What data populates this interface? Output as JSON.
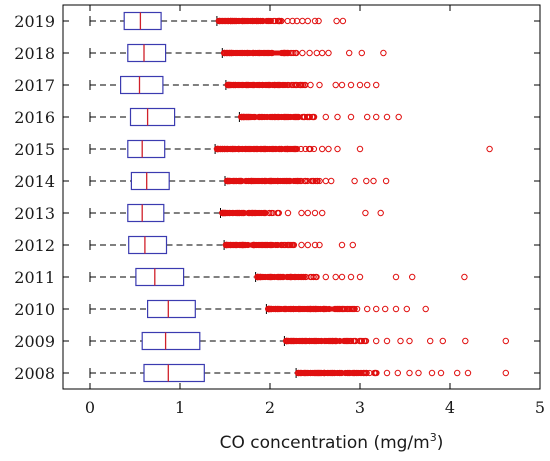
{
  "chart_data": {
    "type": "boxplot",
    "orientation": "horizontal",
    "xlabel_prefix": "CO concentration (mg/m",
    "xlabel_superscript": "3",
    "xlabel_suffix": ")",
    "xlim": [
      -0.3,
      5
    ],
    "xticks": [
      0,
      1,
      2,
      3,
      4,
      5
    ],
    "categories": [
      "2008",
      "2009",
      "2010",
      "2011",
      "2012",
      "2013",
      "2014",
      "2015",
      "2016",
      "2017",
      "2018",
      "2019"
    ],
    "colors": {
      "box": "#3b3bb0",
      "median": "#d0202a",
      "whisker": "#000000",
      "outlier": "#e01010"
    },
    "series": [
      {
        "year": "2019",
        "whisker_low": 0.0,
        "q1": 0.38,
        "median": 0.56,
        "q3": 0.79,
        "whisker_high": 1.41,
        "outlier_dense": [
          1.43,
          2.2
        ],
        "outlier_sparse": [
          2.25,
          2.3,
          2.36,
          2.42,
          2.5,
          2.54,
          2.74,
          2.81
        ]
      },
      {
        "year": "2018",
        "whisker_low": 0.0,
        "q1": 0.42,
        "median": 0.6,
        "q3": 0.84,
        "whisker_high": 1.47,
        "outlier_dense": [
          1.49,
          2.3
        ],
        "outlier_sparse": [
          2.36,
          2.44,
          2.52,
          2.58,
          2.65,
          2.88,
          3.02,
          3.26
        ]
      },
      {
        "year": "2017",
        "whisker_low": 0.0,
        "q1": 0.34,
        "median": 0.55,
        "q3": 0.81,
        "whisker_high": 1.51,
        "outlier_dense": [
          1.53,
          2.4
        ],
        "outlier_sparse": [
          2.45,
          2.55,
          2.73,
          2.8,
          2.9,
          3.0,
          3.08,
          3.18
        ]
      },
      {
        "year": "2016",
        "whisker_low": 0.0,
        "q1": 0.45,
        "median": 0.64,
        "q3": 0.94,
        "whisker_high": 1.66,
        "outlier_dense": [
          1.68,
          2.55
        ],
        "outlier_sparse": [
          2.62,
          2.75,
          2.9,
          3.08,
          3.18,
          3.3,
          3.43
        ]
      },
      {
        "year": "2015",
        "whisker_low": 0.0,
        "q1": 0.42,
        "median": 0.58,
        "q3": 0.83,
        "whisker_high": 1.39,
        "outlier_dense": [
          1.41,
          2.5
        ],
        "outlier_sparse": [
          2.58,
          2.65,
          2.75,
          3.0,
          4.44
        ]
      },
      {
        "year": "2014",
        "whisker_low": 0.0,
        "q1": 0.46,
        "median": 0.63,
        "q3": 0.88,
        "whisker_high": 1.5,
        "outlier_dense": [
          1.52,
          2.56
        ],
        "outlier_sparse": [
          2.62,
          2.68,
          2.94,
          3.07,
          3.15,
          3.29
        ]
      },
      {
        "year": "2013",
        "whisker_low": 0.0,
        "q1": 0.42,
        "median": 0.58,
        "q3": 0.82,
        "whisker_high": 1.45,
        "outlier_dense": [
          1.47,
          2.1
        ],
        "outlier_sparse": [
          2.2,
          2.35,
          2.42,
          2.5,
          2.58,
          3.06,
          3.23
        ]
      },
      {
        "year": "2012",
        "whisker_low": 0.0,
        "q1": 0.43,
        "median": 0.61,
        "q3": 0.85,
        "whisker_high": 1.49,
        "outlier_dense": [
          1.51,
          2.3
        ],
        "outlier_sparse": [
          2.35,
          2.42,
          2.5,
          2.55,
          2.8,
          2.92
        ]
      },
      {
        "year": "2011",
        "whisker_low": 0.0,
        "q1": 0.51,
        "median": 0.72,
        "q3": 1.04,
        "whisker_high": 1.84,
        "outlier_dense": [
          1.86,
          2.55
        ],
        "outlier_sparse": [
          2.62,
          2.73,
          2.8,
          2.9,
          3.0,
          3.4,
          3.58,
          4.16
        ]
      },
      {
        "year": "2010",
        "whisker_low": 0.0,
        "q1": 0.64,
        "median": 0.87,
        "q3": 1.17,
        "whisker_high": 1.96,
        "outlier_dense": [
          1.98,
          3.0
        ],
        "outlier_sparse": [
          3.08,
          3.18,
          3.28,
          3.4,
          3.52,
          3.73
        ]
      },
      {
        "year": "2009",
        "whisker_low": 0.0,
        "q1": 0.58,
        "median": 0.84,
        "q3": 1.22,
        "whisker_high": 2.16,
        "outlier_dense": [
          2.18,
          3.08
        ],
        "outlier_sparse": [
          3.18,
          3.3,
          3.45,
          3.55,
          3.78,
          3.92,
          4.17,
          4.62
        ]
      },
      {
        "year": "2008",
        "whisker_low": 0.0,
        "q1": 0.6,
        "median": 0.87,
        "q3": 1.27,
        "whisker_high": 2.29,
        "outlier_dense": [
          2.31,
          3.2
        ],
        "outlier_sparse": [
          3.3,
          3.42,
          3.55,
          3.65,
          3.8,
          3.9,
          4.08,
          4.2,
          4.62
        ]
      }
    ]
  }
}
